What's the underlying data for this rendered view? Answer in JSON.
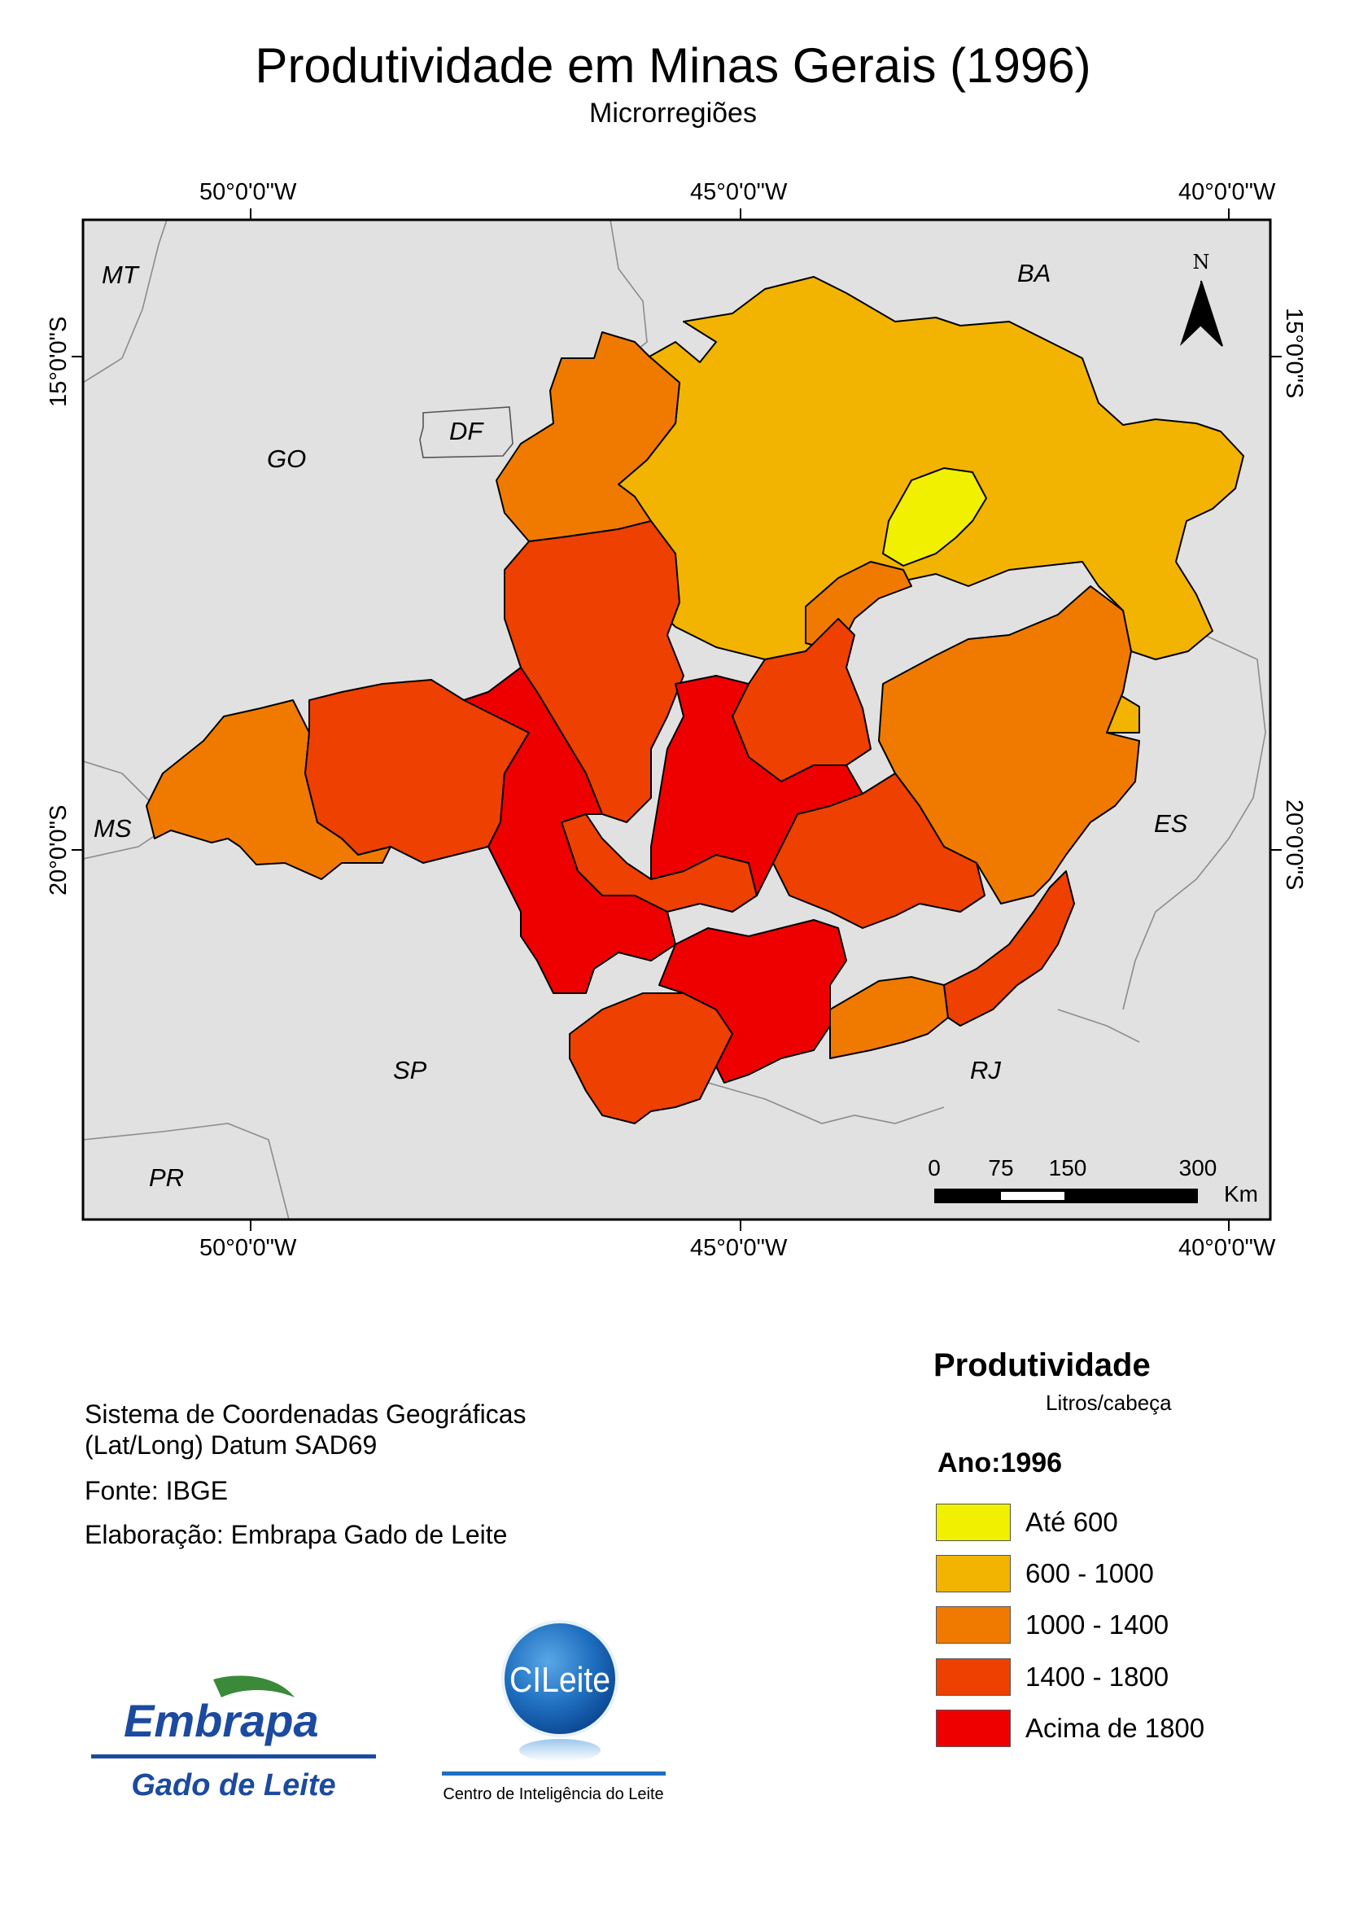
{
  "title": "Produtividade em Minas Gerais (1996)",
  "subtitle": "Microrregiões",
  "coordinates": {
    "top": [
      "50°0'0\"W",
      "45°0'0\"W",
      "40°0'0\"W"
    ],
    "bottom": [
      "50°0'0\"W",
      "45°0'0\"W",
      "40°0'0\"W"
    ],
    "left": [
      "15°0'0\"S",
      "20°0'0\"S"
    ],
    "right": [
      "15°0'0\"S",
      "20°0'0\"S"
    ]
  },
  "states": {
    "mt": "MT",
    "ba": "BA",
    "go": "GO",
    "df": "DF",
    "ms": "MS",
    "es": "ES",
    "sp": "SP",
    "rj": "RJ",
    "pr": "PR"
  },
  "north_arrow": "N",
  "scale_bar": {
    "ticks": [
      "0",
      "75",
      "150",
      "300"
    ],
    "unit": "Km"
  },
  "info": {
    "line1": "Sistema de Coordenadas Geográficas",
    "line2": "(Lat/Long) Datum SAD69",
    "source": "Fonte: IBGE",
    "author": "Elaboração: Embrapa Gado de Leite"
  },
  "legend": {
    "title": "Produtividade",
    "unit": "Litros/cabeça",
    "year": "Ano:1996",
    "classes": [
      {
        "label": "Até 600",
        "color": "#f0f000"
      },
      {
        "label": "600 - 1000",
        "color": "#f2b400"
      },
      {
        "label": "1000 - 1400",
        "color": "#f07a00"
      },
      {
        "label": "1400 - 1800",
        "color": "#ee4000"
      },
      {
        "label": "Acima de 1800",
        "color": "#ee0000"
      }
    ]
  },
  "logos": {
    "embrapa_top": "Embrapa",
    "embrapa_bottom": "Gado de Leite",
    "cileite_badge": "CILeite",
    "cileite_caption": "Centro de Inteligência do Leite"
  },
  "colors": {
    "map_background": "#e1e1e1",
    "state_border": "#8c8c8c",
    "embrapa_blue": "#1b4aa0",
    "embrapa_green": "#3a8a3a"
  }
}
